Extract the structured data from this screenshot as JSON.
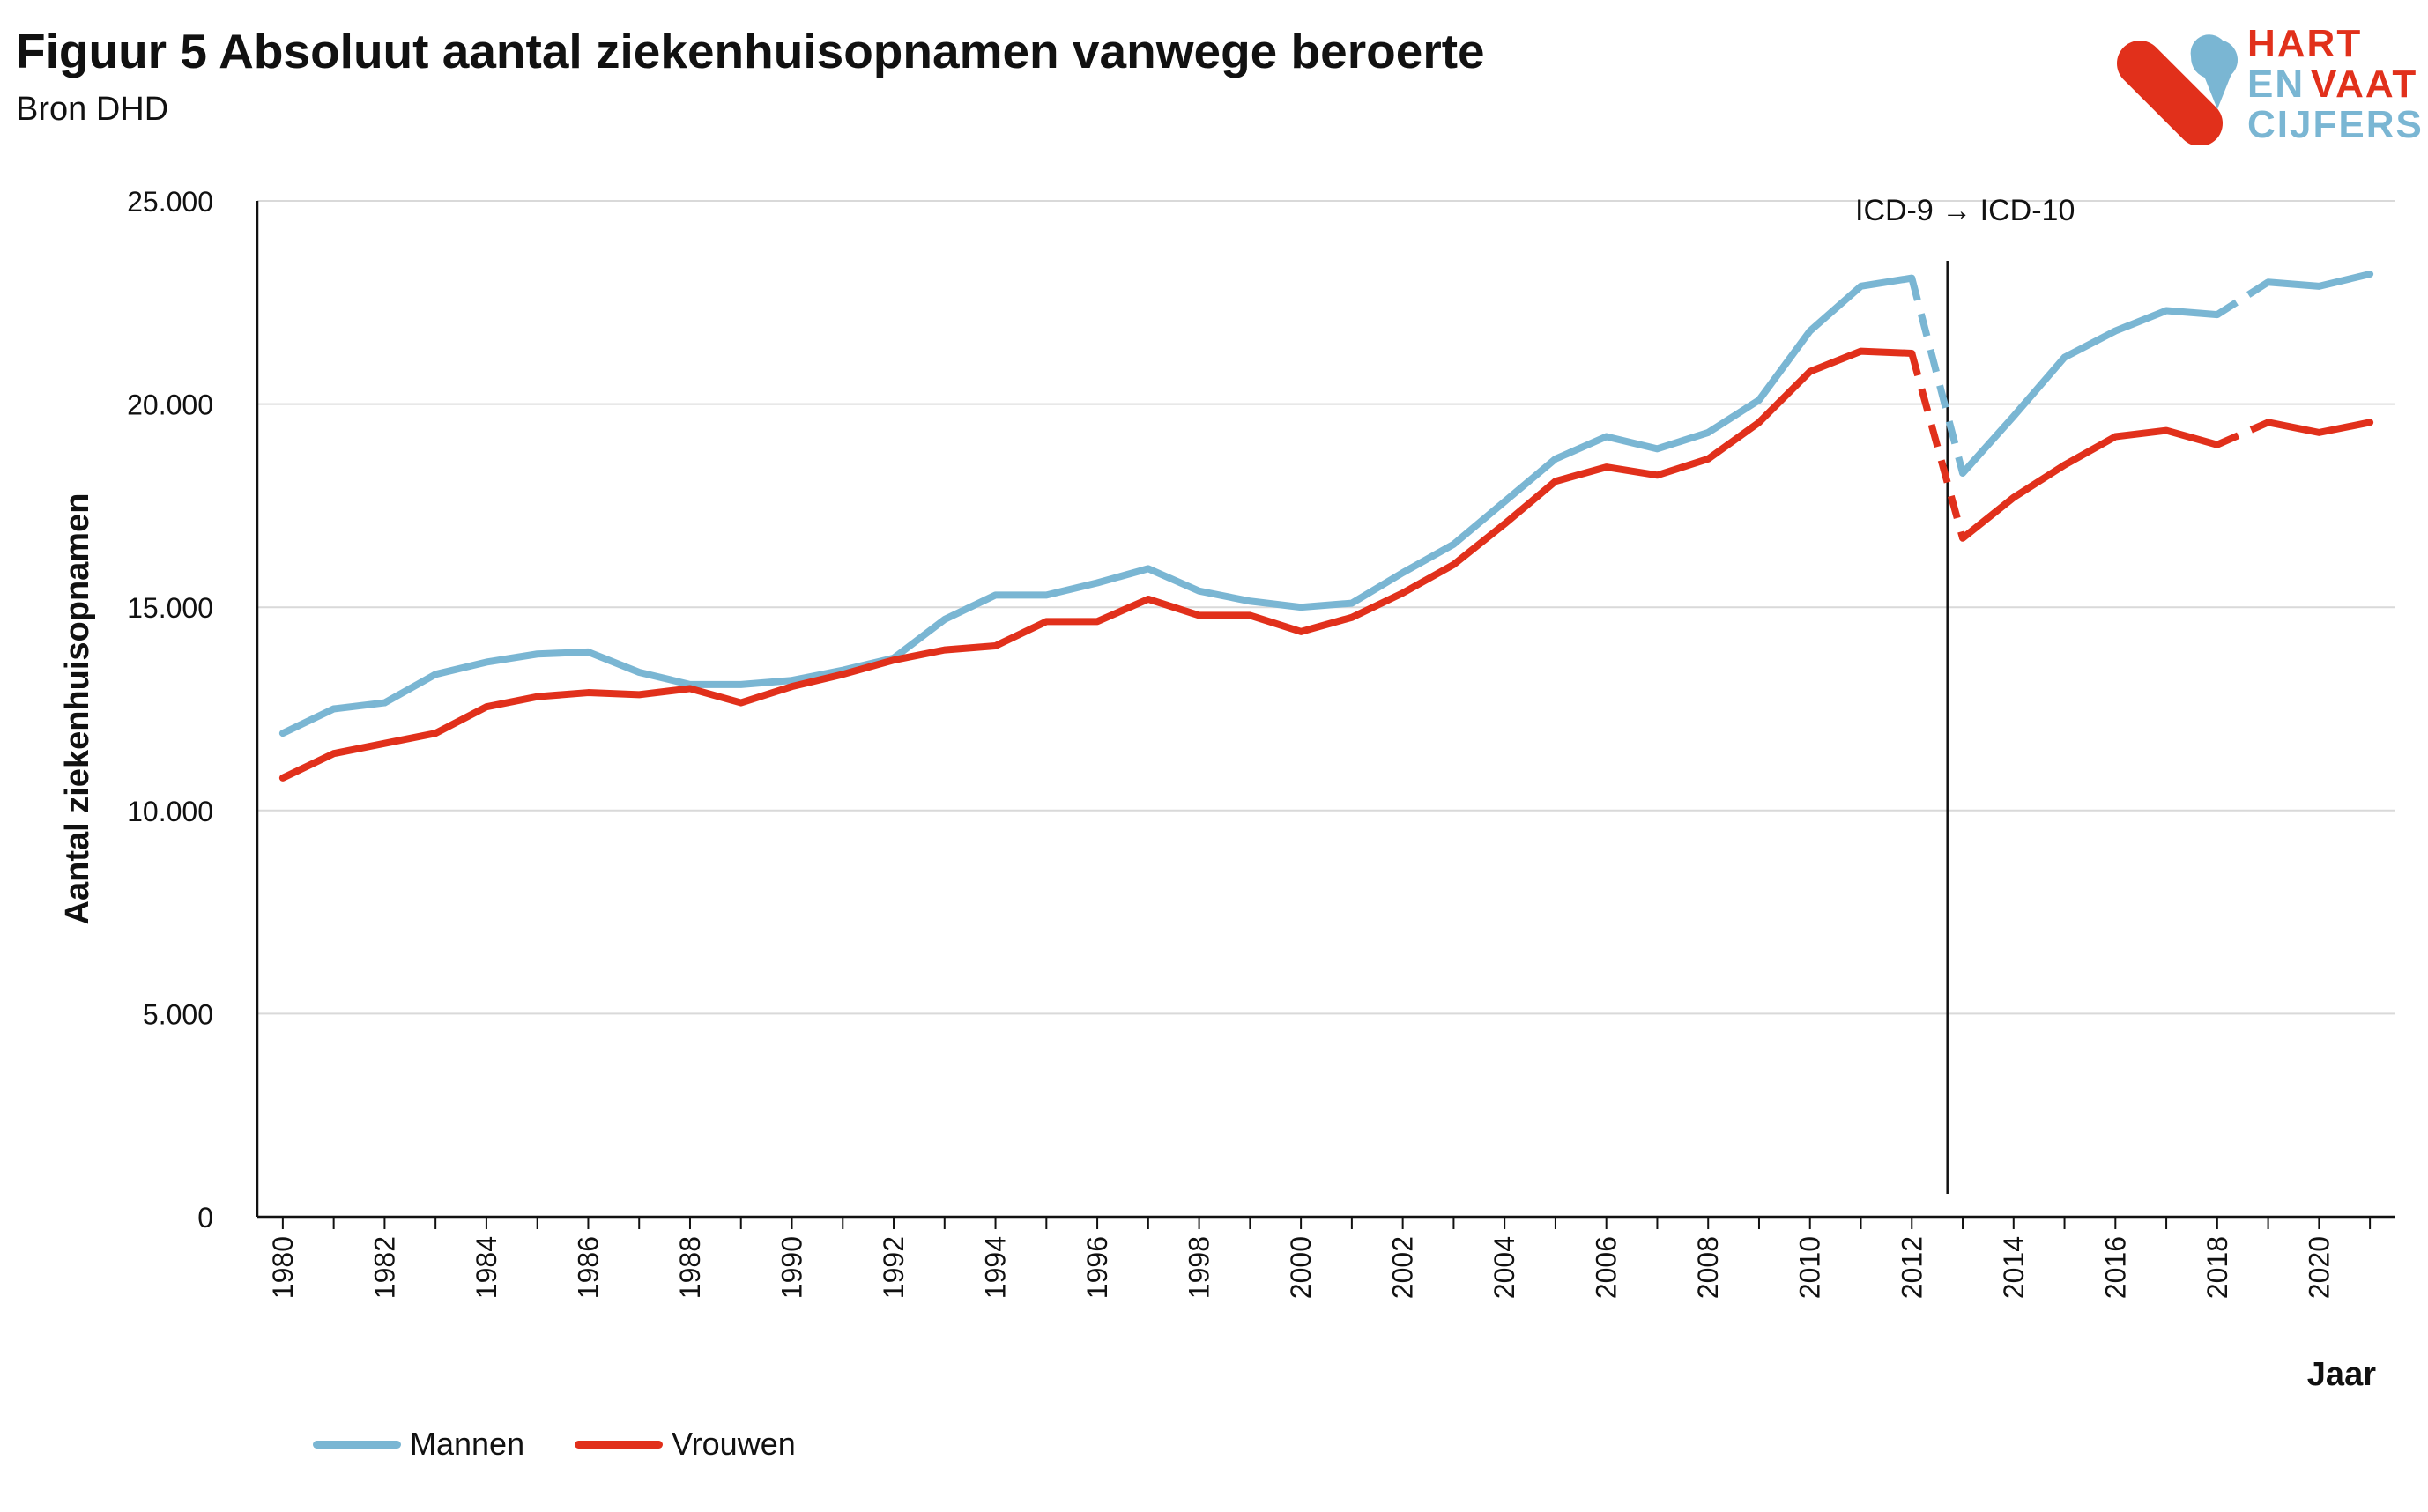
{
  "header": {
    "title": "Figuur 5 Absoluut aantal ziekenhuisopnamen vanwege beroerte",
    "subtitle": "Bron DHD"
  },
  "logo": {
    "line1": "HART",
    "line2a": "EN",
    "line2b": "VAAT",
    "line3": "CIJFERS",
    "colors": {
      "red": "#e1301b",
      "blue": "#7ab6d3"
    }
  },
  "chart_data": {
    "type": "line",
    "title": "Figuur 5 Absoluut aantal ziekenhuisopnamen vanwege beroerte",
    "subtitle": "Bron DHD",
    "xlabel": "Jaar",
    "ylabel": "Aantal ziekenhuisopnamen",
    "ylim": [
      0,
      25000
    ],
    "yticks": [
      0,
      5000,
      10000,
      15000,
      20000,
      25000
    ],
    "ytick_labels": [
      "0",
      "5.000",
      "10.000",
      "15.000",
      "20.000",
      "25.000"
    ],
    "xlim": [
      1979.5,
      2021.5
    ],
    "xticks": [
      1980,
      1982,
      1984,
      1986,
      1988,
      1990,
      1992,
      1994,
      1996,
      1998,
      2000,
      2002,
      2004,
      2006,
      2008,
      2010,
      2012,
      2014,
      2016,
      2018,
      2020
    ],
    "grid": "horizontal",
    "legend_position": "bottom-left",
    "annotation": {
      "text": "ICD-9 → ICD-10",
      "x": 2012.7
    },
    "dashed_segments": [
      [
        2012,
        2013
      ],
      [
        2018,
        2019
      ]
    ],
    "x": [
      1980,
      1981,
      1982,
      1983,
      1984,
      1985,
      1986,
      1987,
      1988,
      1989,
      1990,
      1991,
      1992,
      1993,
      1994,
      1995,
      1996,
      1997,
      1998,
      1999,
      2000,
      2001,
      2002,
      2003,
      2004,
      2005,
      2006,
      2007,
      2008,
      2009,
      2010,
      2011,
      2012,
      2013,
      2014,
      2015,
      2016,
      2017,
      2018,
      2019,
      2020,
      2021
    ],
    "series": [
      {
        "name": "Mannen",
        "color": "#7ab6d3",
        "values": [
          11900,
          12500,
          12650,
          13350,
          13650,
          13850,
          13900,
          13400,
          13100,
          13100,
          13200,
          13450,
          13750,
          14700,
          15300,
          15300,
          15600,
          15950,
          15400,
          15150,
          15000,
          15100,
          15850,
          16550,
          17600,
          18650,
          19200,
          18900,
          19300,
          20100,
          21800,
          22900,
          23100,
          18300,
          19700,
          21150,
          21800,
          22300,
          22200,
          23000,
          22900,
          23200
        ]
      },
      {
        "name": "Vrouwen",
        "color": "#e1301b",
        "values": [
          10800,
          11400,
          11650,
          11900,
          12550,
          12800,
          12900,
          12850,
          13000,
          12650,
          13050,
          13350,
          13700,
          13950,
          14050,
          14650,
          14650,
          15200,
          14800,
          14800,
          14400,
          14750,
          15350,
          16050,
          17050,
          18100,
          18450,
          18250,
          18650,
          19550,
          20800,
          21300,
          21250,
          16700,
          17700,
          18500,
          19200,
          19350,
          19000,
          19550,
          19300,
          19550
        ]
      }
    ]
  }
}
